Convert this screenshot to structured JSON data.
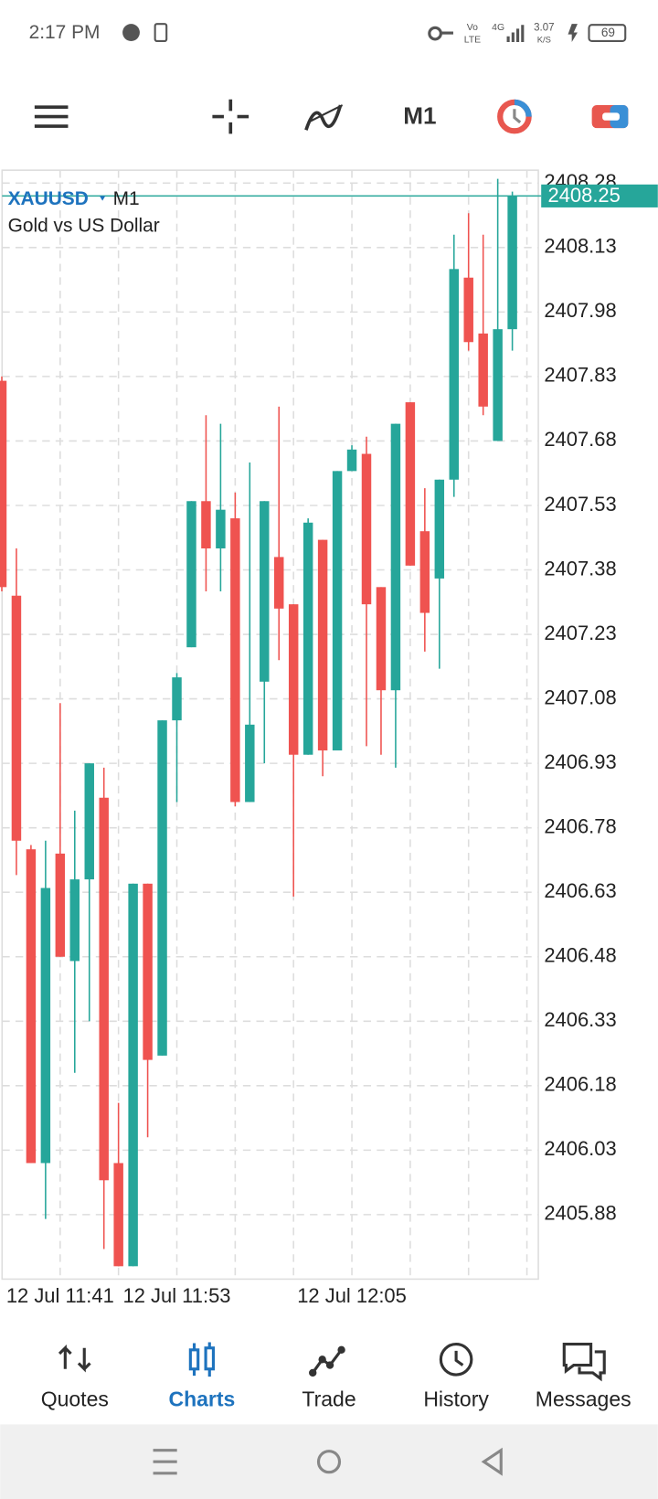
{
  "status_bar": {
    "time": "2:17 PM",
    "volte": [
      "Vo",
      "LTE"
    ],
    "signal": "4G",
    "speed": [
      "3.07",
      "K/S"
    ],
    "battery": "69"
  },
  "toolbar": {
    "timeframe": "M1"
  },
  "chart_data": {
    "type": "candlestick",
    "title": "XAUUSD",
    "timeframe": "M1",
    "subtitle": "Gold vs US Dollar",
    "categories": [
      null,
      null,
      null,
      null,
      "12 Jul 11:41",
      null,
      null,
      null,
      null,
      null,
      null,
      null,
      "12 Jul 11:53",
      null,
      null,
      null,
      null,
      null,
      null,
      null,
      null,
      null,
      null,
      null,
      "12 Jul 12:05",
      null,
      null,
      null,
      null,
      null,
      null,
      null,
      null,
      null,
      null,
      null
    ],
    "open": [
      2407.82,
      2407.32,
      2406.73,
      2406.0,
      2406.72,
      2406.47,
      2406.66,
      2406.85,
      2406.0,
      2405.76,
      2406.65,
      2406.25,
      2407.03,
      2407.2,
      2407.54,
      2407.43,
      2407.5,
      2406.84,
      2407.12,
      2407.41,
      2407.3,
      2406.95,
      2407.45,
      2406.96,
      2407.61,
      2407.65,
      2407.34,
      2407.1,
      2407.77,
      2407.47,
      2407.36,
      2407.59,
      2408.06,
      2407.93,
      2407.68,
      2407.94
    ],
    "high": [
      2407.83,
      2407.43,
      2406.74,
      2406.75,
      2407.07,
      2406.82,
      2406.93,
      2406.92,
      2406.14,
      2406.65,
      2406.65,
      2407.03,
      2407.14,
      2407.54,
      2407.74,
      2407.72,
      2407.56,
      2407.63,
      2407.54,
      2407.76,
      2407.3,
      2407.5,
      2407.45,
      2407.61,
      2407.67,
      2407.69,
      2407.34,
      2407.72,
      2407.77,
      2407.57,
      2407.59,
      2408.16,
      2408.21,
      2408.16,
      2408.29,
      2408.26
    ],
    "low": [
      2407.33,
      2406.67,
      2406.0,
      2405.87,
      2406.48,
      2406.21,
      2406.33,
      2405.8,
      2405.76,
      2405.76,
      2406.06,
      2406.25,
      2406.84,
      2407.2,
      2407.33,
      2407.33,
      2406.83,
      2406.84,
      2406.93,
      2407.17,
      2406.62,
      2406.95,
      2406.9,
      2406.96,
      2407.61,
      2406.97,
      2406.95,
      2406.92,
      2407.39,
      2407.19,
      2407.15,
      2407.55,
      2407.89,
      2407.74,
      2407.68,
      2407.89
    ],
    "close": [
      2407.34,
      2406.75,
      2406.0,
      2406.64,
      2406.48,
      2406.66,
      2406.93,
      2405.96,
      2405.76,
      2406.65,
      2406.24,
      2407.03,
      2407.13,
      2407.54,
      2407.43,
      2407.52,
      2406.84,
      2407.02,
      2407.54,
      2407.29,
      2406.95,
      2407.49,
      2406.96,
      2407.61,
      2407.66,
      2407.3,
      2407.1,
      2407.72,
      2407.39,
      2407.28,
      2407.59,
      2408.08,
      2407.91,
      2407.76,
      2407.94,
      2408.25
    ],
    "up_color": "#26a69a",
    "down_color": "#ef5350",
    "ylim": [
      2405.73,
      2408.31
    ],
    "yticks": [
      2405.88,
      2406.03,
      2406.18,
      2406.33,
      2406.48,
      2406.63,
      2406.78,
      2406.93,
      2407.08,
      2407.23,
      2407.38,
      2407.53,
      2407.68,
      2407.83,
      2407.98,
      2408.13,
      2408.28
    ],
    "last_price": 2408.25,
    "grid": true
  },
  "bottom_nav": {
    "items": [
      "Quotes",
      "Charts",
      "Trade",
      "History",
      "Messages"
    ],
    "active": 1
  }
}
